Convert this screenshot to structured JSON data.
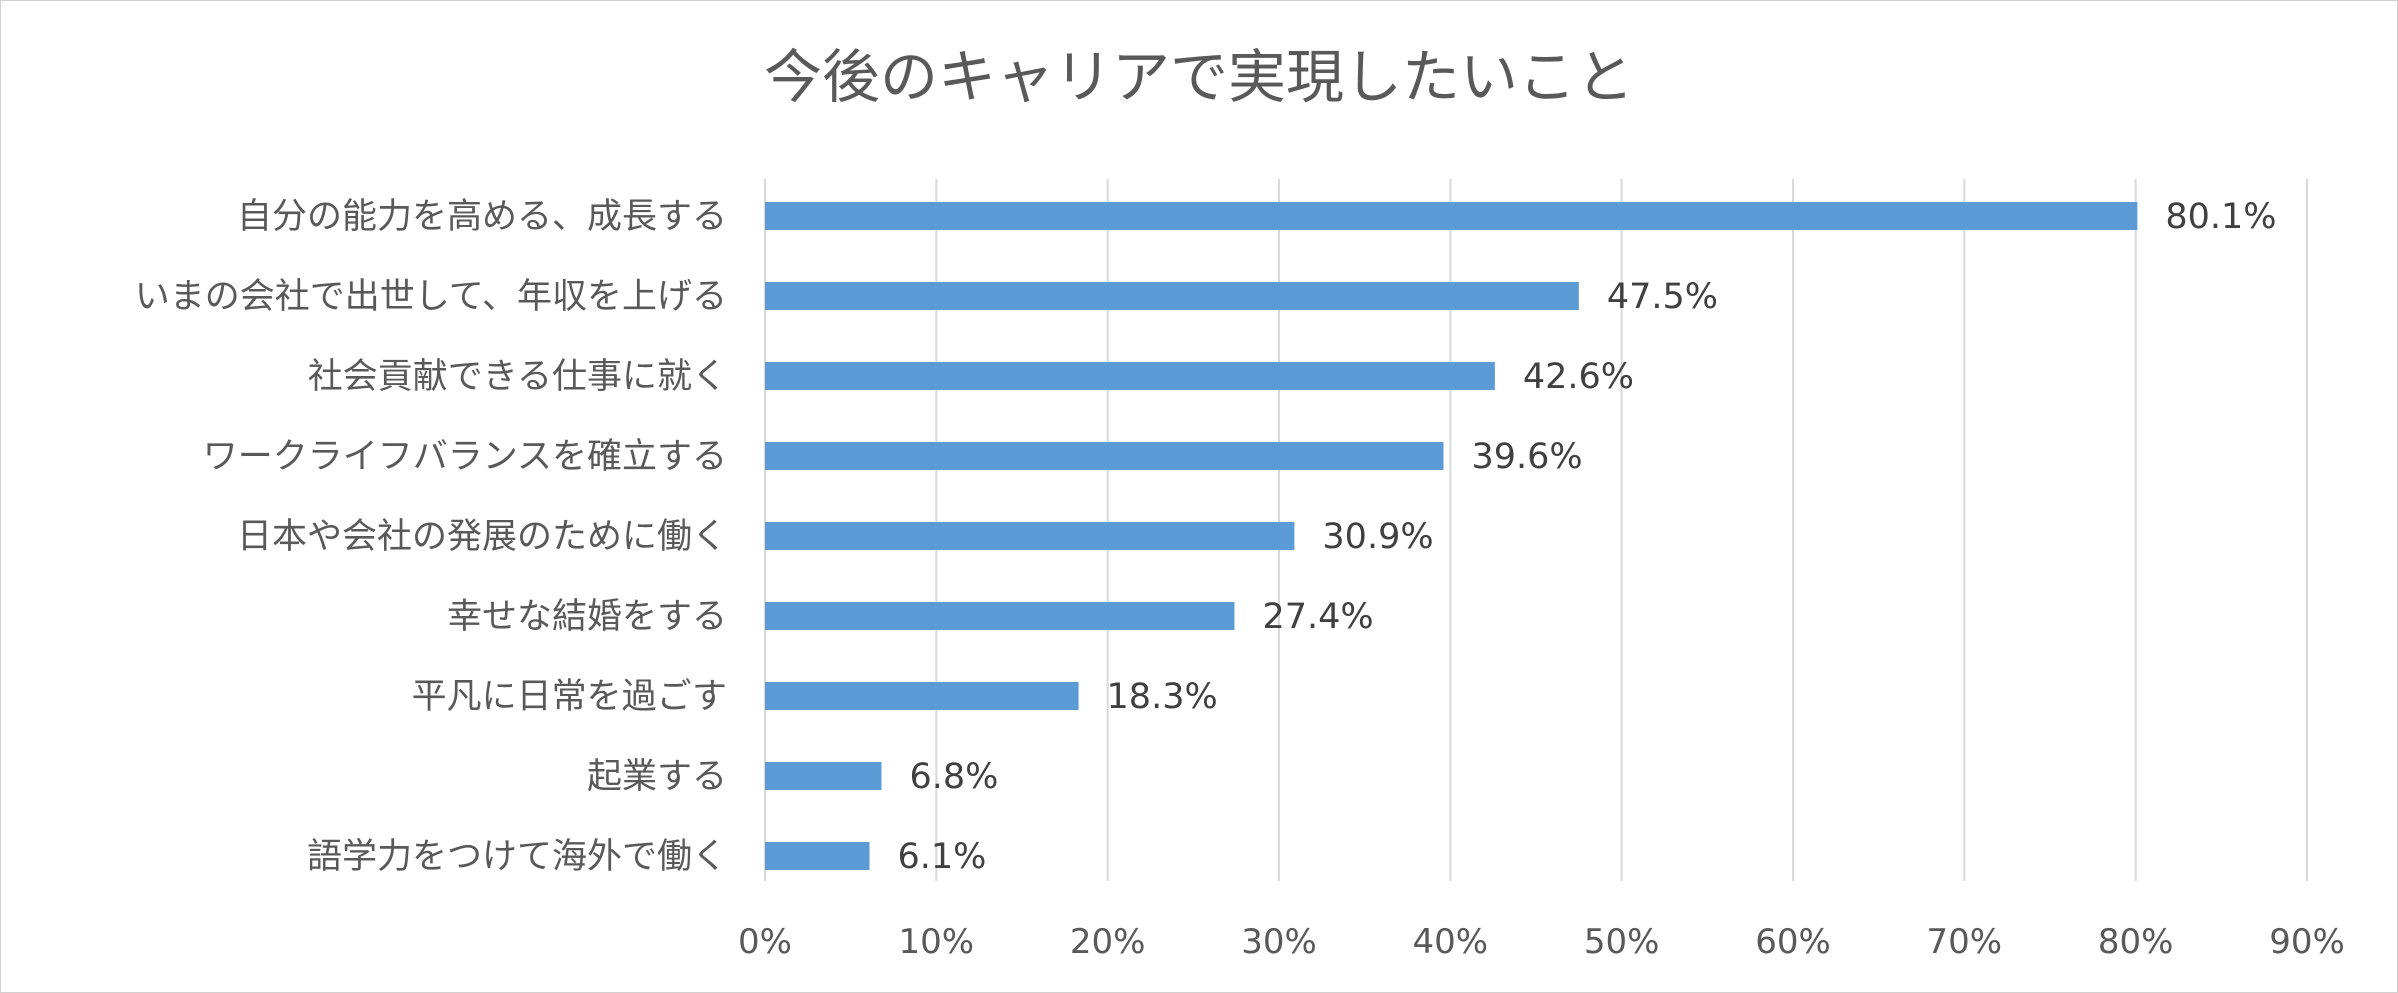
{
  "chart_data": {
    "type": "bar",
    "orientation": "horizontal",
    "title": "今後のキャリアで実現したいこと",
    "categories": [
      "自分の能力を高める、成長する",
      "いまの会社で出世して、年収を上げる",
      "社会貢献できる仕事に就く",
      "ワークライフバランスを確立する",
      "日本や会社の発展のために働く",
      "幸せな結婚をする",
      "平凡に日常を過ごす",
      "起業する",
      "語学力をつけて海外で働く"
    ],
    "values": [
      80.1,
      47.5,
      42.6,
      39.6,
      30.9,
      27.4,
      18.3,
      6.8,
      6.1
    ],
    "data_labels": [
      "80.1%",
      "47.5%",
      "42.6%",
      "39.6%",
      "30.9%",
      "27.4%",
      "18.3%",
      "6.8%",
      "6.1%"
    ],
    "xlim": [
      0,
      90
    ],
    "x_ticks": [
      0,
      10,
      20,
      30,
      40,
      50,
      60,
      70,
      80,
      90
    ],
    "x_tick_labels": [
      "0%",
      "10%",
      "20%",
      "30%",
      "40%",
      "50%",
      "60%",
      "70%",
      "80%",
      "90%"
    ],
    "grid": true,
    "legend": "none",
    "bar_color": "#5b9bd5"
  }
}
